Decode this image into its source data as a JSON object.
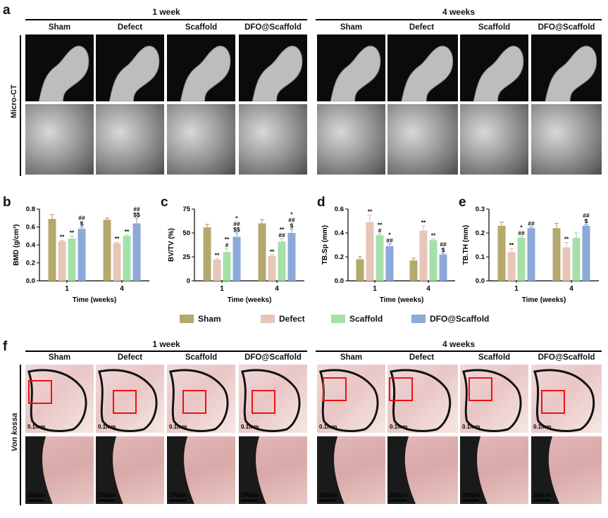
{
  "panel_a": {
    "label": "a",
    "groups": [
      "1 week",
      "4 weeks"
    ],
    "columns": [
      "Sham",
      "Defect",
      "Scaffold",
      "DFO@Scaffold"
    ],
    "row_label": "Micro-CT"
  },
  "panel_f": {
    "label": "f",
    "groups": [
      "1 week",
      "4 weeks"
    ],
    "columns": [
      "Sham",
      "Defect",
      "Scaffold",
      "DFO@Scaffold"
    ],
    "row_label": "Von kossa",
    "scale_top": "0.1mm",
    "scale_bottom": "200μm"
  },
  "legend": {
    "items": [
      {
        "name": "Sham",
        "color": "#b5a86d"
      },
      {
        "name": "Defect",
        "color": "#e6c6b8"
      },
      {
        "name": "Scaffold",
        "color": "#a5e0a8"
      },
      {
        "name": "DFO@Scaffold",
        "color": "#8ca9d8"
      }
    ]
  },
  "chart_data": [
    {
      "label": "b",
      "type": "bar",
      "categories": [
        "1",
        "4"
      ],
      "xlabel": "Time (weeks)",
      "ylabel": "BMD (g/cm³)",
      "ylim": [
        0,
        0.8
      ],
      "yticks": [
        "0.0",
        "0.2",
        "0.4",
        "0.6",
        "0.8"
      ],
      "series": [
        {
          "name": "Sham",
          "values": [
            0.69,
            0.68
          ],
          "errors": [
            0.05,
            0.02
          ]
        },
        {
          "name": "Defect",
          "values": [
            0.44,
            0.42
          ],
          "errors": [
            0.01,
            0.01
          ]
        },
        {
          "name": "Scaffold",
          "values": [
            0.47,
            0.5
          ],
          "errors": [
            0.03,
            0.01
          ]
        },
        {
          "name": "DFO@Scaffold",
          "values": [
            0.58,
            0.64
          ],
          "errors": [
            0.02,
            0.06
          ]
        }
      ],
      "annotations": [
        [
          "",
          ""
        ],
        [
          "**",
          "**"
        ],
        [
          "**",
          "**"
        ],
        [
          "##|$",
          "##|$$"
        ]
      ]
    },
    {
      "label": "c",
      "type": "bar",
      "categories": [
        "1",
        "4"
      ],
      "xlabel": "Time (weeks)",
      "ylabel": "BV/TV (%)",
      "ylim": [
        0,
        75
      ],
      "yticks": [
        "0",
        "25",
        "50",
        "75"
      ],
      "series": [
        {
          "name": "Sham",
          "values": [
            56,
            60
          ],
          "errors": [
            3,
            4
          ]
        },
        {
          "name": "Defect",
          "values": [
            22,
            26
          ],
          "errors": [
            1,
            1
          ]
        },
        {
          "name": "Scaffold",
          "values": [
            30,
            41
          ],
          "errors": [
            4,
            3
          ]
        },
        {
          "name": "DFO@Scaffold",
          "values": [
            46,
            50
          ],
          "errors": [
            4,
            4
          ]
        }
      ],
      "annotations": [
        [
          "",
          ""
        ],
        [
          "**",
          "**"
        ],
        [
          "**|#",
          "**|##"
        ],
        [
          "*|##|$$",
          "*|##|$"
        ]
      ]
    },
    {
      "label": "d",
      "type": "bar",
      "categories": [
        "1",
        "4"
      ],
      "xlabel": "Time (weeks)",
      "ylabel": "TB.Sp (mm)",
      "ylim": [
        0,
        0.6
      ],
      "yticks": [
        "0.0",
        "0.2",
        "0.4",
        "0.6"
      ],
      "series": [
        {
          "name": "Sham",
          "values": [
            0.18,
            0.17
          ],
          "errors": [
            0.02,
            0.02
          ]
        },
        {
          "name": "Defect",
          "values": [
            0.49,
            0.42
          ],
          "errors": [
            0.06,
            0.04
          ]
        },
        {
          "name": "Scaffold",
          "values": [
            0.38,
            0.34
          ],
          "errors": [
            0.01,
            0.01
          ]
        },
        {
          "name": "DFO@Scaffold",
          "values": [
            0.29,
            0.22
          ],
          "errors": [
            0.02,
            0.01
          ]
        }
      ],
      "annotations": [
        [
          "",
          ""
        ],
        [
          "**",
          "**"
        ],
        [
          "**|#",
          "**"
        ],
        [
          "*|##",
          "##|$"
        ]
      ]
    },
    {
      "label": "e",
      "type": "bar",
      "categories": [
        "1",
        "4"
      ],
      "xlabel": "Time (weeks)",
      "ylabel": "TB.TH (mm)",
      "ylim": [
        0,
        0.3
      ],
      "yticks": [
        "0.0",
        "0.1",
        "0.2",
        "0.3"
      ],
      "series": [
        {
          "name": "Sham",
          "values": [
            0.23,
            0.22
          ],
          "errors": [
            0.015,
            0.02
          ]
        },
        {
          "name": "Defect",
          "values": [
            0.12,
            0.14
          ],
          "errors": [
            0.015,
            0.02
          ]
        },
        {
          "name": "Scaffold",
          "values": [
            0.18,
            0.18
          ],
          "errors": [
            0.005,
            0.02
          ]
        },
        {
          "name": "DFO@Scaffold",
          "values": [
            0.22,
            0.23
          ],
          "errors": [
            0.005,
            0.005
          ]
        }
      ],
      "annotations": [
        [
          "",
          ""
        ],
        [
          "**",
          "**"
        ],
        [
          "*|##",
          ""
        ],
        [
          "##",
          "##|$"
        ]
      ]
    }
  ]
}
